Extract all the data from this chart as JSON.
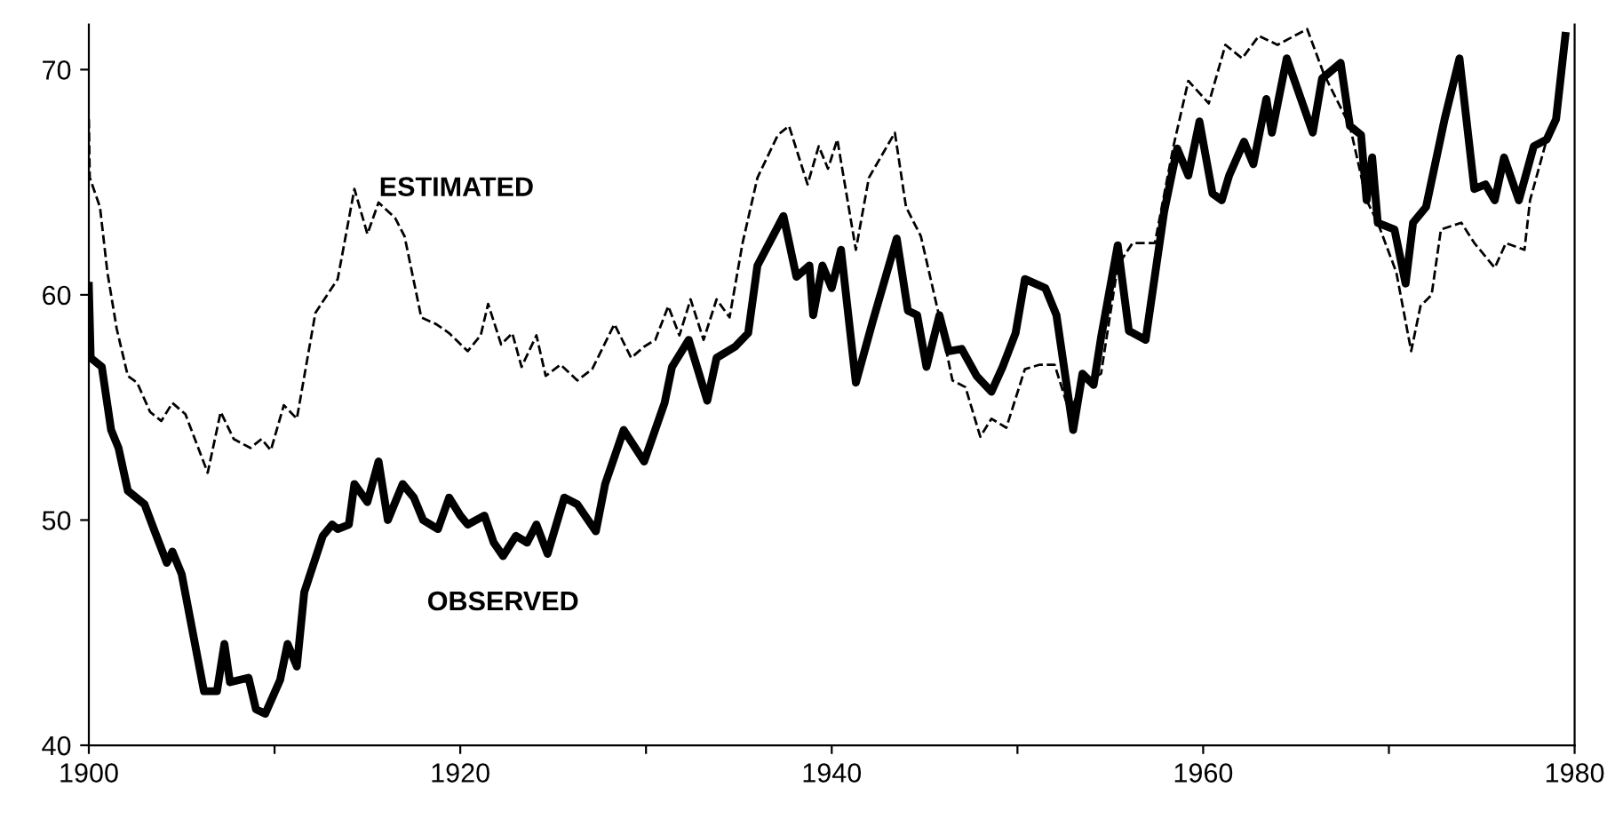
{
  "chart_data": {
    "type": "line",
    "xlim": [
      1900,
      1980
    ],
    "xticks": [
      1900,
      {
        "value": 1910,
        "label": null
      },
      1920,
      {
        "value": 1930,
        "label": null
      },
      1940,
      {
        "value": 1950,
        "label": null
      },
      1960,
      {
        "value": 1970,
        "label": null
      },
      1980
    ],
    "ylim": [
      40,
      72
    ],
    "yticks": [
      40,
      50,
      60,
      70
    ],
    "grid": false,
    "legend": false,
    "marker": "none",
    "series": [
      {
        "name": "OBSERVED",
        "color": "#000000",
        "line_style": "solid",
        "x": [
          1900,
          1900.1,
          1900.7,
          1901.2,
          1901.6,
          1902.1,
          1903,
          1903.5,
          1904.2,
          1904.5,
          1905,
          1906.2,
          1906.9,
          1907.3,
          1907.6,
          1908.6,
          1909,
          1909.5,
          1910.3,
          1910.7,
          1911.2,
          1911.6,
          1912.6,
          1913.1,
          1913.4,
          1914,
          1914.3,
          1915,
          1915.6,
          1916.1,
          1916.9,
          1917.5,
          1918,
          1918.8,
          1919.4,
          1920,
          1920.4,
          1921.3,
          1921.8,
          1922.3,
          1923,
          1923.6,
          1924.1,
          1924.7,
          1925.6,
          1926.3,
          1927.3,
          1927.8,
          1928.8,
          1929.9,
          1931,
          1931.4,
          1932.3,
          1933.3,
          1933.8,
          1934.8,
          1935.5,
          1936,
          1937.4,
          1938.1,
          1938.8,
          1939,
          1939.5,
          1940,
          1940.5,
          1941.3,
          1942.2,
          1943.5,
          1944.1,
          1944.6,
          1945.1,
          1945.8,
          1946.3,
          1947,
          1947.8,
          1948.6,
          1949.2,
          1949.9,
          1950.4,
          1951.5,
          1952.1,
          1953,
          1953.5,
          1954.1,
          1954.5,
          1955.4,
          1956,
          1956.9,
          1957.9,
          1958.6,
          1959.2,
          1959.8,
          1960.5,
          1961,
          1961.4,
          1962.2,
          1962.7,
          1963.4,
          1963.7,
          1964.5,
          1965.9,
          1966.4,
          1967.4,
          1967.9,
          1968.5,
          1968.8,
          1969.1,
          1969.4,
          1970.3,
          1970.9,
          1971.3,
          1972,
          1973,
          1973.8,
          1974.6,
          1975.2,
          1975.7,
          1976.2,
          1977,
          1977.8,
          1978.5,
          1979,
          1979.5
        ],
        "values": [
          60.4,
          57.2,
          56.8,
          54.0,
          53.2,
          51.3,
          50.7,
          49.6,
          48.1,
          48.6,
          47.6,
          42.4,
          42.4,
          44.5,
          42.8,
          43.0,
          41.6,
          41.4,
          42.9,
          44.5,
          43.5,
          46.8,
          49.3,
          49.8,
          49.6,
          49.8,
          51.6,
          50.8,
          52.6,
          50.0,
          51.6,
          51.0,
          50.0,
          49.6,
          51.0,
          50.2,
          49.8,
          50.2,
          49.0,
          48.4,
          49.3,
          49.0,
          49.8,
          48.5,
          51.0,
          50.7,
          49.5,
          51.6,
          54.0,
          52.6,
          55.2,
          56.8,
          58.0,
          55.3,
          57.2,
          57.7,
          58.3,
          61.3,
          63.5,
          60.8,
          61.3,
          59.1,
          61.3,
          60.3,
          62.0,
          56.1,
          58.8,
          62.5,
          59.3,
          59.1,
          56.8,
          59.1,
          57.5,
          57.6,
          56.4,
          55.7,
          56.8,
          58.3,
          60.7,
          60.3,
          59.1,
          54.0,
          56.5,
          56.0,
          58.1,
          62.2,
          58.4,
          58.0,
          63.7,
          66.5,
          65.3,
          67.7,
          64.5,
          64.2,
          65.3,
          66.8,
          65.8,
          68.7,
          67.2,
          70.5,
          67.2,
          69.6,
          70.3,
          67.5,
          67.1,
          64.2,
          66.1,
          63.2,
          62.9,
          60.5,
          63.2,
          63.9,
          67.8,
          70.5,
          64.7,
          64.9,
          64.2,
          66.1,
          64.2,
          66.6,
          66.9,
          67.8,
          71.5
        ]
      },
      {
        "name": "ESTIMATED",
        "color": "#000000",
        "line_style": "dashed",
        "x": [
          1900,
          1900.05,
          1900.6,
          1901,
          1901.5,
          1902.1,
          1902.6,
          1903.3,
          1903.9,
          1904.5,
          1905.2,
          1906.4,
          1907.1,
          1907.8,
          1908.7,
          1909.3,
          1909.8,
          1910.5,
          1911.2,
          1912.2,
          1913.4,
          1914.3,
          1915,
          1915.6,
          1916.5,
          1917,
          1917.9,
          1918.7,
          1919.4,
          1920.4,
          1921.1,
          1921.5,
          1922.2,
          1922.8,
          1923.3,
          1924.1,
          1924.6,
          1925.4,
          1926.3,
          1927.1,
          1928.3,
          1929.2,
          1929.9,
          1930.5,
          1931.2,
          1931.8,
          1932.4,
          1933.1,
          1933.8,
          1934.5,
          1935.2,
          1936,
          1937.1,
          1937.7,
          1938.7,
          1939.3,
          1939.8,
          1940.3,
          1941.3,
          1942,
          1943.4,
          1944,
          1944.8,
          1945.8,
          1946.5,
          1947.2,
          1948,
          1948.6,
          1949.4,
          1950.4,
          1951.2,
          1952,
          1952.8,
          1953.5,
          1954.5,
          1955.4,
          1956.2,
          1957.4,
          1958.4,
          1959.2,
          1960.3,
          1961.2,
          1962.1,
          1963,
          1964,
          1965.6,
          1966.5,
          1967.9,
          1968.8,
          1969.4,
          1970.4,
          1971.2,
          1971.7,
          1972.3,
          1972.8,
          1973.9,
          1974.6,
          1975.7,
          1976.3,
          1977.3,
          1977.6,
          1978.5,
          1979,
          1979.5
        ],
        "values": [
          67.8,
          65.2,
          63.9,
          61.0,
          58.5,
          56.4,
          56.1,
          54.8,
          54.4,
          55.2,
          54.7,
          52.1,
          54.8,
          53.6,
          53.2,
          53.6,
          53.1,
          55.1,
          54.5,
          59.2,
          60.7,
          64.7,
          62.7,
          64.1,
          63.4,
          62.6,
          59.0,
          58.7,
          58.3,
          57.5,
          58.2,
          59.6,
          57.8,
          58.3,
          56.8,
          58.2,
          56.4,
          56.9,
          56.2,
          56.7,
          58.7,
          57.2,
          57.7,
          58.0,
          59.5,
          58.2,
          59.8,
          58.0,
          59.8,
          59.0,
          62.3,
          65.2,
          67.1,
          67.5,
          64.9,
          66.6,
          65.6,
          66.9,
          62.0,
          65.2,
          67.2,
          63.9,
          62.6,
          59.0,
          56.2,
          55.9,
          53.7,
          54.5,
          54.1,
          56.7,
          56.9,
          56.9,
          54.8,
          56.0,
          56.5,
          61.3,
          62.3,
          62.3,
          66.6,
          69.5,
          68.5,
          71.1,
          70.5,
          71.5,
          71.1,
          71.8,
          69.8,
          67.5,
          64.2,
          63.2,
          61.0,
          57.5,
          59.5,
          60.0,
          62.9,
          63.2,
          62.3,
          61.2,
          62.3,
          62.0,
          64.2,
          66.9,
          67.8,
          71.5
        ]
      }
    ]
  }
}
